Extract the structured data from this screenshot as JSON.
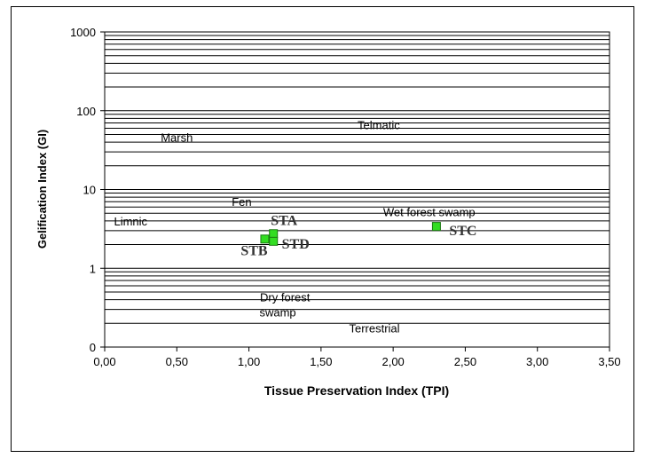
{
  "chart_data": {
    "type": "scatter",
    "title": "",
    "xlabel": "Tissue Preservation Index (TPI)",
    "ylabel": "Gelification Index (GI)",
    "xlim": [
      0,
      3.5
    ],
    "x_ticks": [
      "0,00",
      "0,50",
      "1,00",
      "1,50",
      "2,00",
      "2,50",
      "3,00",
      "3,50"
    ],
    "y_ticks": [
      "0",
      "1",
      "10",
      "100",
      "1000"
    ],
    "y_scale": "log",
    "grid": "horizontal",
    "legend": "none",
    "marker_color": "#33dd22",
    "points": [
      {
        "label": "STA",
        "x": 1.17,
        "y": 2.75
      },
      {
        "label": "STB",
        "x": 1.11,
        "y": 2.35
      },
      {
        "label": "STD",
        "x": 1.17,
        "y": 2.2
      },
      {
        "label": "STC",
        "x": 2.3,
        "y": 3.4
      }
    ],
    "annotations": [
      {
        "text": "Telmatic",
        "x": 1.9,
        "y": 65
      },
      {
        "text": "Marsh",
        "x": 0.5,
        "y": 45
      },
      {
        "text": "Fen",
        "x": 0.95,
        "y": 6.9
      },
      {
        "text": "Wet forest swamp",
        "x": 2.25,
        "y": 5.1
      },
      {
        "text": "Limnic",
        "x": 0.18,
        "y": 3.9
      },
      {
        "text": "Dry forest",
        "x": 1.25,
        "y": 0.42
      },
      {
        "text": "swamp",
        "x": 1.2,
        "y": 0.27
      },
      {
        "text": "Terrestrial",
        "x": 1.87,
        "y": 0.17
      }
    ]
  }
}
